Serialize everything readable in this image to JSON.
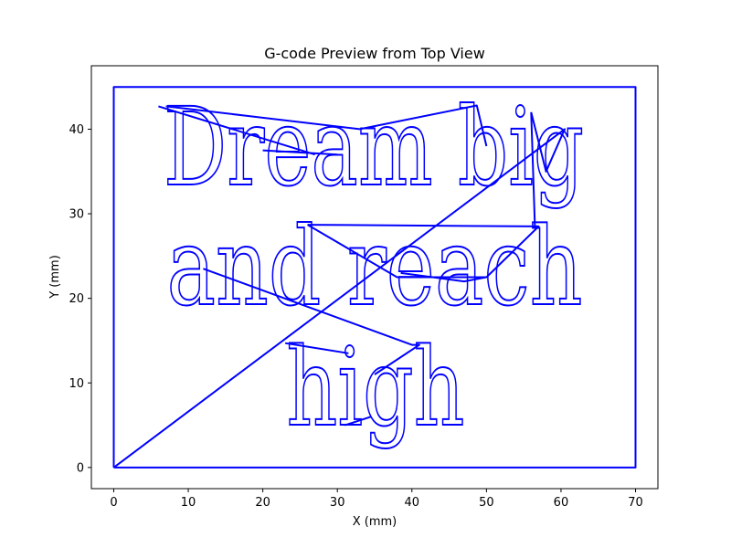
{
  "chart_data": {
    "type": "line",
    "title": "G-code Preview from Top View",
    "xlabel": "X (mm)",
    "ylabel": "Y (mm)",
    "xlim": [
      -3,
      73
    ],
    "ylim": [
      -2.5,
      47.5
    ],
    "x_ticks": [
      0,
      10,
      20,
      30,
      40,
      50,
      60,
      70
    ],
    "y_ticks": [
      0,
      10,
      20,
      30,
      40
    ],
    "grid": false,
    "line_color": "#0000ff",
    "series": [
      {
        "points": [
          [
            0,
            0
          ],
          [
            0,
            45
          ],
          [
            70,
            45
          ],
          [
            70,
            0
          ],
          [
            0,
            0
          ]
        ]
      },
      {
        "points": [
          [
            0,
            0
          ],
          [
            60.5,
            40
          ],
          [
            58,
            35
          ],
          [
            56,
            42
          ]
        ]
      },
      {
        "points": [
          [
            56,
            42
          ],
          [
            56.5,
            28.5
          ],
          [
            57,
            28.5
          ],
          [
            50,
            22.5
          ],
          [
            47,
            22
          ],
          [
            38.5,
            23
          ]
        ]
      },
      {
        "points": [
          [
            6,
            42.7
          ],
          [
            27,
            37
          ]
        ]
      },
      {
        "points": [
          [
            7,
            42.7
          ],
          [
            33,
            40
          ],
          [
            48.7,
            42.8
          ],
          [
            50,
            38
          ]
        ]
      },
      {
        "points": [
          [
            30,
            37
          ],
          [
            20,
            37.5
          ]
        ]
      },
      {
        "points": [
          [
            12,
            23.5
          ],
          [
            40,
            14.5
          ],
          [
            41,
            14.5
          ],
          [
            35,
            11
          ]
        ]
      },
      {
        "points": [
          [
            31,
            5
          ],
          [
            34.5,
            6
          ]
        ]
      },
      {
        "points": [
          [
            23,
            14.7
          ],
          [
            31.5,
            13.5
          ]
        ]
      },
      {
        "points": [
          [
            26,
            28.7
          ],
          [
            57,
            28.5
          ]
        ]
      },
      {
        "points": [
          [
            26,
            28.7
          ],
          [
            38,
            22.5
          ],
          [
            50,
            22.5
          ]
        ]
      }
    ],
    "annotations": [
      "Dream big",
      "and reach",
      "high"
    ]
  }
}
